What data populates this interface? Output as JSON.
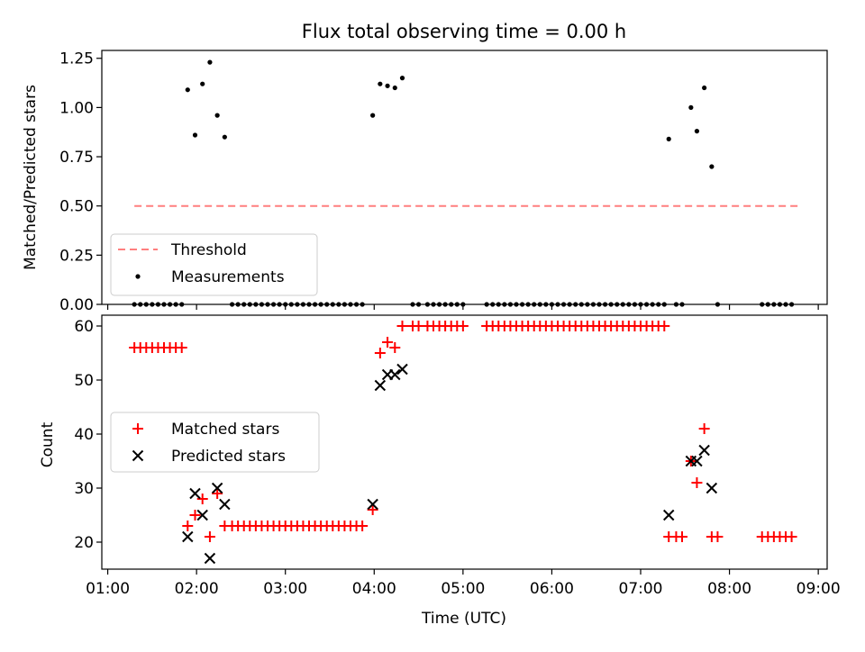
{
  "chart_data": [
    {
      "type": "scatter",
      "title": "Flux total observing time = 0.00 h",
      "xlabel": "",
      "ylabel": "Matched/Predicted stars",
      "xlim": [
        "00:56",
        "09:06"
      ],
      "ylim": [
        0,
        1.29
      ],
      "yticks": [
        "0.00",
        "0.25",
        "0.50",
        "0.75",
        "1.00",
        "1.25"
      ],
      "grid": false,
      "legend_position": "lower-left",
      "threshold": {
        "name": "Threshold",
        "y": 0.5,
        "x_start": "01:18",
        "x_end": "08:46",
        "color": "#ff7f7f",
        "style": "dashed"
      },
      "series": [
        {
          "name": "Measurements",
          "color": "#000000",
          "marker": "dot",
          "points": [
            [
              "01:18",
              0
            ],
            [
              "01:22",
              0
            ],
            [
              "01:26",
              0
            ],
            [
              "01:30",
              0
            ],
            [
              "01:34",
              0
            ],
            [
              "01:38",
              0
            ],
            [
              "01:42",
              0
            ],
            [
              "01:46",
              0
            ],
            [
              "01:50",
              0
            ],
            [
              "01:54",
              1.09
            ],
            [
              "01:59",
              0.86
            ],
            [
              "02:04",
              1.12
            ],
            [
              "02:09",
              1.23
            ],
            [
              "02:14",
              0.96
            ],
            [
              "02:19",
              0.85
            ],
            [
              "02:24",
              0
            ],
            [
              "02:28",
              0
            ],
            [
              "02:32",
              0
            ],
            [
              "02:36",
              0
            ],
            [
              "02:40",
              0
            ],
            [
              "02:44",
              0
            ],
            [
              "02:48",
              0
            ],
            [
              "02:52",
              0
            ],
            [
              "02:56",
              0
            ],
            [
              "03:00",
              0
            ],
            [
              "03:04",
              0
            ],
            [
              "03:08",
              0
            ],
            [
              "03:12",
              0
            ],
            [
              "03:16",
              0
            ],
            [
              "03:20",
              0
            ],
            [
              "03:24",
              0
            ],
            [
              "03:28",
              0
            ],
            [
              "03:32",
              0
            ],
            [
              "03:36",
              0
            ],
            [
              "03:40",
              0
            ],
            [
              "03:44",
              0
            ],
            [
              "03:48",
              0
            ],
            [
              "03:52",
              0
            ],
            [
              "03:59",
              0.96
            ],
            [
              "04:04",
              1.12
            ],
            [
              "04:09",
              1.11
            ],
            [
              "04:14",
              1.1
            ],
            [
              "04:19",
              1.15
            ],
            [
              "04:26",
              0
            ],
            [
              "04:30",
              0
            ],
            [
              "04:36",
              0
            ],
            [
              "04:40",
              0
            ],
            [
              "04:44",
              0
            ],
            [
              "04:48",
              0
            ],
            [
              "04:52",
              0
            ],
            [
              "04:56",
              0
            ],
            [
              "05:00",
              0
            ],
            [
              "05:16",
              0
            ],
            [
              "05:20",
              0
            ],
            [
              "05:24",
              0
            ],
            [
              "05:28",
              0
            ],
            [
              "05:32",
              0
            ],
            [
              "05:36",
              0
            ],
            [
              "05:40",
              0
            ],
            [
              "05:44",
              0
            ],
            [
              "05:48",
              0
            ],
            [
              "05:52",
              0
            ],
            [
              "05:56",
              0
            ],
            [
              "06:00",
              0
            ],
            [
              "06:04",
              0
            ],
            [
              "06:08",
              0
            ],
            [
              "06:12",
              0
            ],
            [
              "06:16",
              0
            ],
            [
              "06:20",
              0
            ],
            [
              "06:24",
              0
            ],
            [
              "06:28",
              0
            ],
            [
              "06:32",
              0
            ],
            [
              "06:36",
              0
            ],
            [
              "06:40",
              0
            ],
            [
              "06:44",
              0
            ],
            [
              "06:48",
              0
            ],
            [
              "06:52",
              0
            ],
            [
              "06:56",
              0
            ],
            [
              "07:00",
              0
            ],
            [
              "07:04",
              0
            ],
            [
              "07:08",
              0
            ],
            [
              "07:12",
              0
            ],
            [
              "07:16",
              0
            ],
            [
              "07:19",
              0.84
            ],
            [
              "07:24",
              0
            ],
            [
              "07:28",
              0
            ],
            [
              "07:34",
              1.0
            ],
            [
              "07:38",
              0.88
            ],
            [
              "07:43",
              1.1
            ],
            [
              "07:48",
              0.7
            ],
            [
              "07:52",
              0
            ],
            [
              "08:22",
              0
            ],
            [
              "08:26",
              0
            ],
            [
              "08:30",
              0
            ],
            [
              "08:34",
              0
            ],
            [
              "08:38",
              0
            ],
            [
              "08:42",
              0
            ]
          ]
        }
      ]
    },
    {
      "type": "scatter",
      "title": "",
      "xlabel": "Time (UTC)",
      "ylabel": "Count",
      "xlim": [
        "00:56",
        "09:06"
      ],
      "ylim": [
        15,
        62
      ],
      "xticks": [
        "01:00",
        "02:00",
        "03:00",
        "04:00",
        "05:00",
        "06:00",
        "07:00",
        "08:00",
        "09:00"
      ],
      "yticks": [
        "20",
        "30",
        "40",
        "50",
        "60"
      ],
      "grid": false,
      "legend_position": "center-left",
      "series": [
        {
          "name": "Matched stars",
          "color": "#ff0000",
          "marker": "plus",
          "points": [
            [
              "01:18",
              56
            ],
            [
              "01:22",
              56
            ],
            [
              "01:26",
              56
            ],
            [
              "01:30",
              56
            ],
            [
              "01:34",
              56
            ],
            [
              "01:38",
              56
            ],
            [
              "01:42",
              56
            ],
            [
              "01:46",
              56
            ],
            [
              "01:50",
              56
            ],
            [
              "01:54",
              23
            ],
            [
              "01:59",
              25
            ],
            [
              "02:04",
              28
            ],
            [
              "02:09",
              21
            ],
            [
              "02:14",
              29
            ],
            [
              "02:19",
              23
            ],
            [
              "02:24",
              23
            ],
            [
              "02:28",
              23
            ],
            [
              "02:32",
              23
            ],
            [
              "02:36",
              23
            ],
            [
              "02:40",
              23
            ],
            [
              "02:44",
              23
            ],
            [
              "02:48",
              23
            ],
            [
              "02:52",
              23
            ],
            [
              "02:56",
              23
            ],
            [
              "03:00",
              23
            ],
            [
              "03:04",
              23
            ],
            [
              "03:08",
              23
            ],
            [
              "03:12",
              23
            ],
            [
              "03:16",
              23
            ],
            [
              "03:20",
              23
            ],
            [
              "03:24",
              23
            ],
            [
              "03:28",
              23
            ],
            [
              "03:32",
              23
            ],
            [
              "03:36",
              23
            ],
            [
              "03:40",
              23
            ],
            [
              "03:44",
              23
            ],
            [
              "03:48",
              23
            ],
            [
              "03:52",
              23
            ],
            [
              "03:59",
              26
            ],
            [
              "04:04",
              55
            ],
            [
              "04:09",
              57
            ],
            [
              "04:14",
              56
            ],
            [
              "04:19",
              60
            ],
            [
              "04:26",
              60
            ],
            [
              "04:30",
              60
            ],
            [
              "04:36",
              60
            ],
            [
              "04:40",
              60
            ],
            [
              "04:44",
              60
            ],
            [
              "04:48",
              60
            ],
            [
              "04:52",
              60
            ],
            [
              "04:56",
              60
            ],
            [
              "05:00",
              60
            ],
            [
              "05:16",
              60
            ],
            [
              "05:20",
              60
            ],
            [
              "05:24",
              60
            ],
            [
              "05:28",
              60
            ],
            [
              "05:32",
              60
            ],
            [
              "05:36",
              60
            ],
            [
              "05:40",
              60
            ],
            [
              "05:44",
              60
            ],
            [
              "05:48",
              60
            ],
            [
              "05:52",
              60
            ],
            [
              "05:56",
              60
            ],
            [
              "06:00",
              60
            ],
            [
              "06:04",
              60
            ],
            [
              "06:08",
              60
            ],
            [
              "06:12",
              60
            ],
            [
              "06:16",
              60
            ],
            [
              "06:20",
              60
            ],
            [
              "06:24",
              60
            ],
            [
              "06:28",
              60
            ],
            [
              "06:32",
              60
            ],
            [
              "06:36",
              60
            ],
            [
              "06:40",
              60
            ],
            [
              "06:44",
              60
            ],
            [
              "06:48",
              60
            ],
            [
              "06:52",
              60
            ],
            [
              "06:56",
              60
            ],
            [
              "07:00",
              60
            ],
            [
              "07:04",
              60
            ],
            [
              "07:08",
              60
            ],
            [
              "07:12",
              60
            ],
            [
              "07:16",
              60
            ],
            [
              "07:19",
              21
            ],
            [
              "07:24",
              21
            ],
            [
              "07:28",
              21
            ],
            [
              "07:34",
              35
            ],
            [
              "07:38",
              31
            ],
            [
              "07:43",
              41
            ],
            [
              "07:48",
              21
            ],
            [
              "07:52",
              21
            ],
            [
              "08:22",
              21
            ],
            [
              "08:26",
              21
            ],
            [
              "08:30",
              21
            ],
            [
              "08:34",
              21
            ],
            [
              "08:38",
              21
            ],
            [
              "08:42",
              21
            ]
          ]
        },
        {
          "name": "Predicted stars",
          "color": "#000000",
          "marker": "x",
          "points": [
            [
              "01:54",
              21
            ],
            [
              "01:59",
              29
            ],
            [
              "02:04",
              25
            ],
            [
              "02:09",
              17
            ],
            [
              "02:14",
              30
            ],
            [
              "02:19",
              27
            ],
            [
              "03:59",
              27
            ],
            [
              "04:04",
              49
            ],
            [
              "04:09",
              51
            ],
            [
              "04:14",
              51
            ],
            [
              "04:19",
              52
            ],
            [
              "07:19",
              25
            ],
            [
              "07:34",
              35
            ],
            [
              "07:38",
              35
            ],
            [
              "07:43",
              37
            ],
            [
              "07:48",
              30
            ]
          ]
        }
      ]
    }
  ]
}
